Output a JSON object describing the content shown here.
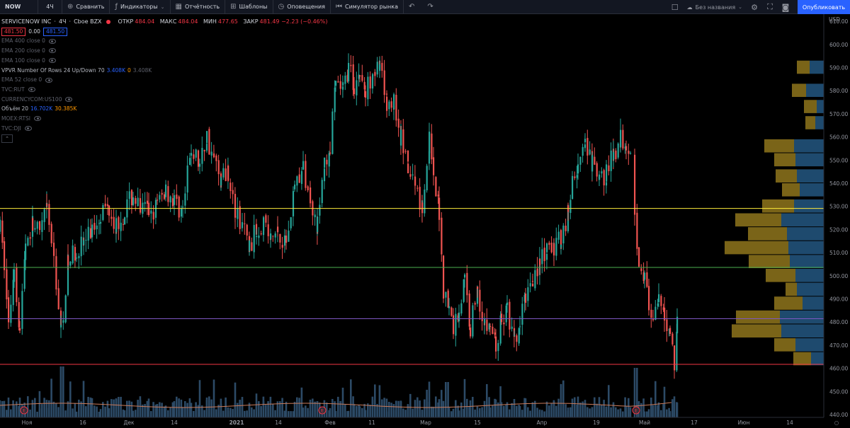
{
  "toolbar": {
    "symbol": "NOW",
    "interval": "4Ч",
    "items": [
      {
        "icon": "plus-circle-icon",
        "label": "Сравнить"
      },
      {
        "icon": "indicators-icon",
        "label": "Индикаторы"
      },
      {
        "icon": "calendar-icon",
        "label": "Отчётность"
      },
      {
        "icon": "templates-icon",
        "label": "Шаблоны"
      },
      {
        "icon": "alarm-clock-icon",
        "label": "Оповещения"
      },
      {
        "icon": "replay-icon",
        "label": "Симулятор рынка"
      }
    ],
    "layout_name": "Без названия",
    "publish": "Опубликовать"
  },
  "legend": {
    "title": "SERVICENOW INC",
    "interval": "4Ч",
    "exchange": "Cboe BZX",
    "ohlc": [
      {
        "k": "ОТКР",
        "v": "484.04"
      },
      {
        "k": "МАКС",
        "v": "484.04"
      },
      {
        "k": "МИН",
        "v": "477.65"
      },
      {
        "k": "ЗАКР",
        "v": "481.49 −2.23 (−0.46%)"
      }
    ],
    "bid": "481.50",
    "spread": "0.00",
    "ask": "481.50",
    "indicators": [
      {
        "label": "EMA 400 close 0",
        "bright": false
      },
      {
        "label": "EMA 200 close 0",
        "bright": false
      },
      {
        "label": "EMA 100 close 0",
        "bright": false
      },
      {
        "label": "VPVR Number Of Rows 24 Up/Down 70",
        "bright": true,
        "values": [
          {
            "t": "3.408K",
            "c": "blue"
          },
          {
            "t": "0",
            "c": "org"
          },
          {
            "t": "3.408K",
            "c": "gray"
          }
        ]
      },
      {
        "label": "EMA 52 close 0",
        "bright": false
      },
      {
        "label": "TVC:RUT",
        "bright": false
      },
      {
        "label": "CURRENCYCOM:US100",
        "bright": false
      },
      {
        "label": "Объём 20",
        "bright": true,
        "values": [
          {
            "t": "16.702K",
            "c": "blue"
          },
          {
            "t": "30.385K",
            "c": "org"
          }
        ]
      },
      {
        "label": "MOEX:RTSI",
        "bright": false
      },
      {
        "label": "TVC:DJI",
        "bright": false
      }
    ]
  },
  "price_axis": {
    "currency": "USD",
    "ticks": [
      610,
      600,
      590,
      580,
      570,
      560,
      550,
      540,
      530,
      520,
      510,
      500,
      490,
      480,
      470,
      460,
      450,
      440
    ],
    "levels": [
      {
        "price": 529.11,
        "label": "529.11",
        "color": "#ffeb3b",
        "text_color": "#000000"
      },
      {
        "price": 503.6,
        "label": "503.60",
        "color": "#4caf50",
        "text_color": "#ffffff"
      },
      {
        "price": 481.42,
        "label": "481.42",
        "color": "#7e57c2",
        "text_color": "#ffffff"
      },
      {
        "price": 461.7,
        "label": "461.70",
        "color": "#f23645",
        "text_color": "#ffffff"
      }
    ]
  },
  "time_axis": {
    "labels": [
      "Ноя",
      "16",
      "Дек",
      "14",
      "2021",
      "14",
      "Фев",
      "11",
      "Мар",
      "15",
      "Апр",
      "19",
      "Май",
      "17",
      "Июн",
      "14"
    ]
  },
  "colors": {
    "up": "#26a69a",
    "down": "#ef5350",
    "vp_up": "#1e4a6e",
    "vp_down": "#7a6418",
    "volume": "#2c4a66"
  },
  "chart_data": {
    "type": "candlestick",
    "ylim": [
      438,
      612
    ],
    "anchors": [
      [
        0,
        520
      ],
      [
        6,
        505
      ],
      [
        12,
        478
      ],
      [
        20,
        505
      ],
      [
        28,
        476
      ],
      [
        36,
        515
      ],
      [
        46,
        522
      ],
      [
        56,
        518
      ],
      [
        66,
        528
      ],
      [
        76,
        508
      ],
      [
        86,
        476
      ],
      [
        96,
        505
      ],
      [
        108,
        512
      ],
      [
        118,
        514
      ],
      [
        130,
        520
      ],
      [
        142,
        528
      ],
      [
        154,
        530
      ],
      [
        164,
        522
      ],
      [
        176,
        528
      ],
      [
        188,
        535
      ],
      [
        198,
        528
      ],
      [
        210,
        528
      ],
      [
        222,
        530
      ],
      [
        234,
        538
      ],
      [
        246,
        532
      ],
      [
        258,
        528
      ],
      [
        270,
        555
      ],
      [
        282,
        548
      ],
      [
        292,
        560
      ],
      [
        302,
        550
      ],
      [
        312,
        542
      ],
      [
        322,
        546
      ],
      [
        332,
        526
      ],
      [
        342,
        522
      ],
      [
        352,
        512
      ],
      [
        362,
        520
      ],
      [
        372,
        524
      ],
      [
        382,
        515
      ],
      [
        392,
        520
      ],
      [
        404,
        514
      ],
      [
        416,
        540
      ],
      [
        428,
        545
      ],
      [
        438,
        535
      ],
      [
        448,
        522
      ],
      [
        458,
        548
      ],
      [
        466,
        555
      ],
      [
        474,
        582
      ],
      [
        484,
        580
      ],
      [
        492,
        590
      ],
      [
        500,
        582
      ],
      [
        508,
        588
      ],
      [
        516,
        578
      ],
      [
        526,
        590
      ],
      [
        536,
        588
      ],
      [
        546,
        575
      ],
      [
        556,
        575
      ],
      [
        566,
        560
      ],
      [
        576,
        545
      ],
      [
        586,
        540
      ],
      [
        596,
        530
      ],
      [
        606,
        558
      ],
      [
        612,
        540
      ],
      [
        620,
        528
      ],
      [
        626,
        495
      ],
      [
        634,
        485
      ],
      [
        640,
        478
      ],
      [
        648,
        485
      ],
      [
        656,
        498
      ],
      [
        664,
        478
      ],
      [
        674,
        495
      ],
      [
        684,
        478
      ],
      [
        692,
        478
      ],
      [
        700,
        470
      ],
      [
        708,
        480
      ],
      [
        716,
        485
      ],
      [
        726,
        470
      ],
      [
        734,
        478
      ],
      [
        742,
        492
      ],
      [
        752,
        500
      ],
      [
        762,
        505
      ],
      [
        772,
        510
      ],
      [
        782,
        512
      ],
      [
        792,
        516
      ],
      [
        802,
        528
      ],
      [
        808,
        540
      ],
      [
        816,
        548
      ],
      [
        826,
        555
      ],
      [
        836,
        548
      ],
      [
        846,
        540
      ],
      [
        856,
        545
      ],
      [
        866,
        552
      ],
      [
        876,
        560
      ],
      [
        884,
        558
      ],
      [
        890,
        556
      ]
    ],
    "anchors_2": [
      [
        896,
        525
      ],
      [
        902,
        508
      ],
      [
        910,
        500
      ],
      [
        916,
        485
      ],
      [
        922,
        478
      ],
      [
        930,
        488
      ],
      [
        938,
        482
      ],
      [
        946,
        476
      ],
      [
        952,
        462
      ],
      [
        956,
        481
      ]
    ],
    "vp_rows": [
      {
        "price": 590,
        "up": 20,
        "down": 18
      },
      {
        "price": 580,
        "up": 25,
        "down": 20
      },
      {
        "price": 573,
        "up": 10,
        "down": 18
      },
      {
        "price": 566,
        "up": 12,
        "down": 14
      },
      {
        "price": 556,
        "up": 42,
        "down": 42
      },
      {
        "price": 550,
        "up": 40,
        "down": 30
      },
      {
        "price": 543,
        "up": 38,
        "down": 30
      },
      {
        "price": 537,
        "up": 34,
        "down": 25
      },
      {
        "price": 530,
        "up": 42,
        "down": 45
      },
      {
        "price": 524,
        "up": 60,
        "down": 65
      },
      {
        "price": 518,
        "up": 52,
        "down": 55
      },
      {
        "price": 512,
        "up": 50,
        "down": 90
      },
      {
        "price": 506,
        "up": 48,
        "down": 58
      },
      {
        "price": 500,
        "up": 40,
        "down": 42
      },
      {
        "price": 494,
        "up": 38,
        "down": 16
      },
      {
        "price": 488,
        "up": 30,
        "down": 40
      },
      {
        "price": 482,
        "up": 62,
        "down": 62
      },
      {
        "price": 476,
        "up": 60,
        "down": 70
      },
      {
        "price": 470,
        "up": 40,
        "down": 30
      },
      {
        "price": 464,
        "up": 18,
        "down": 25
      }
    ]
  }
}
